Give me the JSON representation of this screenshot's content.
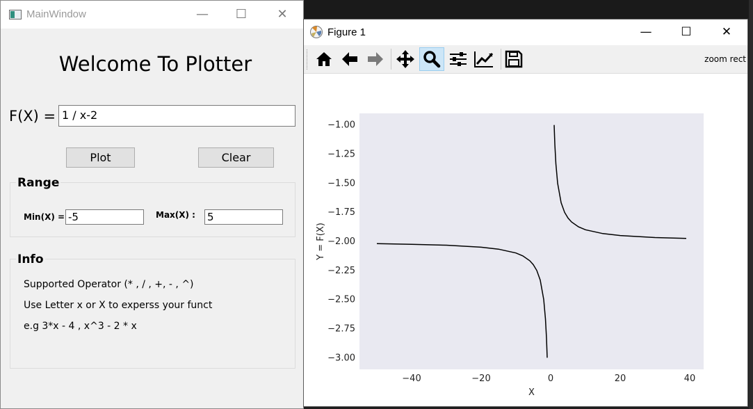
{
  "main_window": {
    "title": "MainWindow",
    "heading": "Welcome To Plotter",
    "fx_label": "F(X) =",
    "fx_value": "1 / x-2",
    "plot_label": "Plot",
    "clear_label": "Clear",
    "range": {
      "title": "Range",
      "min_label": "Min(X) =",
      "min_value": "-5",
      "max_label": "Max(X) :",
      "max_value": "5"
    },
    "info": {
      "title": "Info",
      "line1": "Supported Operator (* , / , +, - , ^)",
      "line2": "Use Letter x or X to experss your function",
      "line3": "e.g 3*x - 4 , x^3 - 2 * x"
    }
  },
  "figure_window": {
    "title": "Figure 1",
    "toolbar": {
      "buttons": [
        "home-icon",
        "back-arrow-icon",
        "forward-arrow-icon",
        "pan-icon",
        "zoom-icon",
        "configure-subplots-icon",
        "edit-axis-icon",
        "save-icon"
      ],
      "active": "zoom-icon",
      "message": "zoom rect"
    }
  },
  "colors": {
    "axes_bg": "#e9e9f1",
    "line": "#000000",
    "active_tool": "#cde6f7"
  },
  "chart_data": {
    "type": "line",
    "xlabel": "X",
    "ylabel": "Y = F(X)",
    "xlim": [
      -55,
      44
    ],
    "ylim": [
      -3.1,
      -0.9
    ],
    "xticks": [
      -40,
      -20,
      0,
      20,
      40
    ],
    "xtick_labels": [
      "−40",
      "−20",
      "0",
      "20",
      "40"
    ],
    "yticks": [
      -1.0,
      -1.25,
      -1.5,
      -1.75,
      -2.0,
      -2.25,
      -2.5,
      -2.75,
      -3.0
    ],
    "ytick_labels": [
      "−1.00",
      "−1.25",
      "−1.50",
      "−1.75",
      "−2.00",
      "−2.25",
      "−2.50",
      "−2.75",
      "−3.00"
    ],
    "grid": false,
    "series": [
      {
        "x": [
          -50,
          -40,
          -30,
          -20,
          -15,
          -10,
          -8,
          -6,
          -5,
          -4,
          -3,
          -2,
          -1.5,
          -1.2,
          -1
        ],
        "y": [
          -2.02,
          -2.025,
          -2.033,
          -2.05,
          -2.067,
          -2.1,
          -2.125,
          -2.167,
          -2.2,
          -2.25,
          -2.333,
          -2.5,
          -2.667,
          -2.833,
          -3.0
        ]
      },
      {
        "x": [
          1,
          1.2,
          1.5,
          2,
          3,
          4,
          5,
          6,
          8,
          10,
          15,
          20,
          30,
          39
        ],
        "y": [
          -1.0,
          -1.167,
          -1.333,
          -1.5,
          -1.667,
          -1.75,
          -1.8,
          -1.833,
          -1.875,
          -1.9,
          -1.933,
          -1.95,
          -1.967,
          -1.974
        ]
      }
    ]
  }
}
